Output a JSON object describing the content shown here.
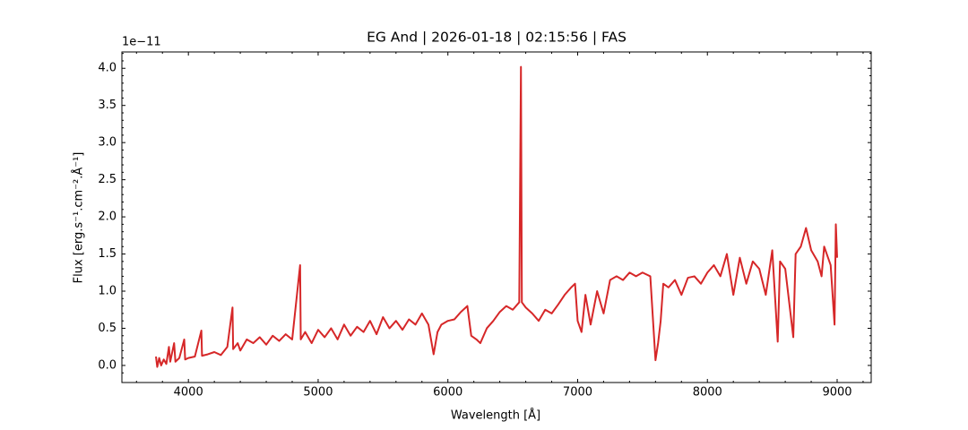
{
  "chart_data": {
    "type": "line",
    "title": "EG And | 2026-01-18 | 02:15:56 | FAS",
    "xlabel": "Wavelength [Å]",
    "ylabel": "Flux [erg.s⁻¹.cm⁻².Å⁻¹]",
    "y_offset_label": "1e−11",
    "xlim": [
      3487.5,
      9262.5
    ],
    "ylim": [
      -0.23,
      4.22
    ],
    "xticks": [
      4000,
      5000,
      6000,
      7000,
      8000,
      9000
    ],
    "yticks": [
      {
        "value": 0,
        "label": "0.0"
      },
      0.5,
      {
        "value": 1,
        "label": "1.0"
      },
      1.5,
      {
        "value": 2,
        "label": "2.0"
      },
      2.5,
      {
        "value": 3,
        "label": "3.0"
      },
      3.5,
      {
        "value": 4,
        "label": "4.0"
      }
    ],
    "xminorticks": [
      3600,
      3800,
      4200,
      4400,
      4600,
      4800,
      5200,
      5400,
      5600,
      5800,
      6200,
      6400,
      6600,
      6800,
      7200,
      7400,
      7600,
      7800,
      8200,
      8400,
      8600,
      8800,
      9200
    ],
    "yminorticks": [
      -0.1,
      0.1,
      0.2,
      0.3,
      0.4,
      0.6,
      0.7,
      0.8,
      0.9,
      1.1,
      1.2,
      1.3,
      1.4,
      1.6,
      1.7,
      1.8,
      1.9,
      2.1,
      2.2,
      2.3,
      2.4,
      2.6,
      2.7,
      2.8,
      2.9,
      3.1,
      3.2,
      3.3,
      3.4,
      3.6,
      3.7,
      3.8,
      3.9,
      4.1,
      4.2
    ],
    "series": [
      {
        "color": "#d62728",
        "x": [
          3750,
          3760,
          3775,
          3790,
          3810,
          3830,
          3850,
          3860,
          3890,
          3900,
          3930,
          3968,
          3975,
          4000,
          4050,
          4100,
          4105,
          4150,
          4200,
          4250,
          4300,
          4340,
          4345,
          4380,
          4400,
          4450,
          4500,
          4550,
          4600,
          4650,
          4700,
          4750,
          4800,
          4861,
          4866,
          4900,
          4950,
          5000,
          5050,
          5100,
          5150,
          5200,
          5250,
          5300,
          5350,
          5400,
          5450,
          5500,
          5550,
          5600,
          5650,
          5700,
          5750,
          5800,
          5850,
          5890,
          5920,
          5950,
          6000,
          6050,
          6100,
          6150,
          6180,
          6220,
          6250,
          6300,
          6350,
          6400,
          6450,
          6500,
          6550,
          6563,
          6570,
          6600,
          6650,
          6700,
          6750,
          6800,
          6850,
          6900,
          6950,
          6980,
          7000,
          7030,
          7060,
          7100,
          7150,
          7200,
          7250,
          7300,
          7350,
          7400,
          7450,
          7500,
          7560,
          7600,
          7620,
          7640,
          7660,
          7700,
          7750,
          7800,
          7850,
          7900,
          7950,
          8000,
          8050,
          8100,
          8150,
          8200,
          8250,
          8300,
          8350,
          8400,
          8450,
          8500,
          8542,
          8560,
          8600,
          8662,
          8680,
          8720,
          8760,
          8800,
          8850,
          8880,
          8900,
          8950,
          8980,
          8990,
          9000
        ],
        "values": [
          0.12,
          -0.02,
          0.1,
          0.0,
          0.08,
          0.02,
          0.25,
          0.05,
          0.3,
          0.05,
          0.1,
          0.35,
          0.08,
          0.1,
          0.12,
          0.47,
          0.13,
          0.15,
          0.18,
          0.14,
          0.25,
          0.78,
          0.22,
          0.3,
          0.2,
          0.35,
          0.3,
          0.38,
          0.28,
          0.4,
          0.33,
          0.42,
          0.35,
          1.35,
          0.35,
          0.45,
          0.3,
          0.48,
          0.38,
          0.5,
          0.35,
          0.55,
          0.4,
          0.52,
          0.45,
          0.6,
          0.42,
          0.65,
          0.5,
          0.6,
          0.48,
          0.62,
          0.55,
          0.7,
          0.55,
          0.15,
          0.45,
          0.55,
          0.6,
          0.62,
          0.72,
          0.8,
          0.4,
          0.35,
          0.3,
          0.5,
          0.6,
          0.72,
          0.8,
          0.75,
          0.85,
          4.02,
          0.85,
          0.78,
          0.7,
          0.6,
          0.75,
          0.7,
          0.82,
          0.95,
          1.05,
          1.1,
          0.6,
          0.45,
          0.95,
          0.55,
          1.0,
          0.7,
          1.15,
          1.2,
          1.15,
          1.25,
          1.2,
          1.25,
          1.2,
          0.07,
          0.3,
          0.6,
          1.1,
          1.05,
          1.15,
          0.95,
          1.18,
          1.2,
          1.1,
          1.25,
          1.35,
          1.2,
          1.5,
          0.95,
          1.45,
          1.1,
          1.4,
          1.3,
          0.95,
          1.55,
          0.32,
          1.4,
          1.3,
          0.38,
          1.5,
          1.6,
          1.85,
          1.55,
          1.4,
          1.2,
          1.6,
          1.35,
          0.55,
          1.9,
          1.45
        ]
      }
    ]
  }
}
